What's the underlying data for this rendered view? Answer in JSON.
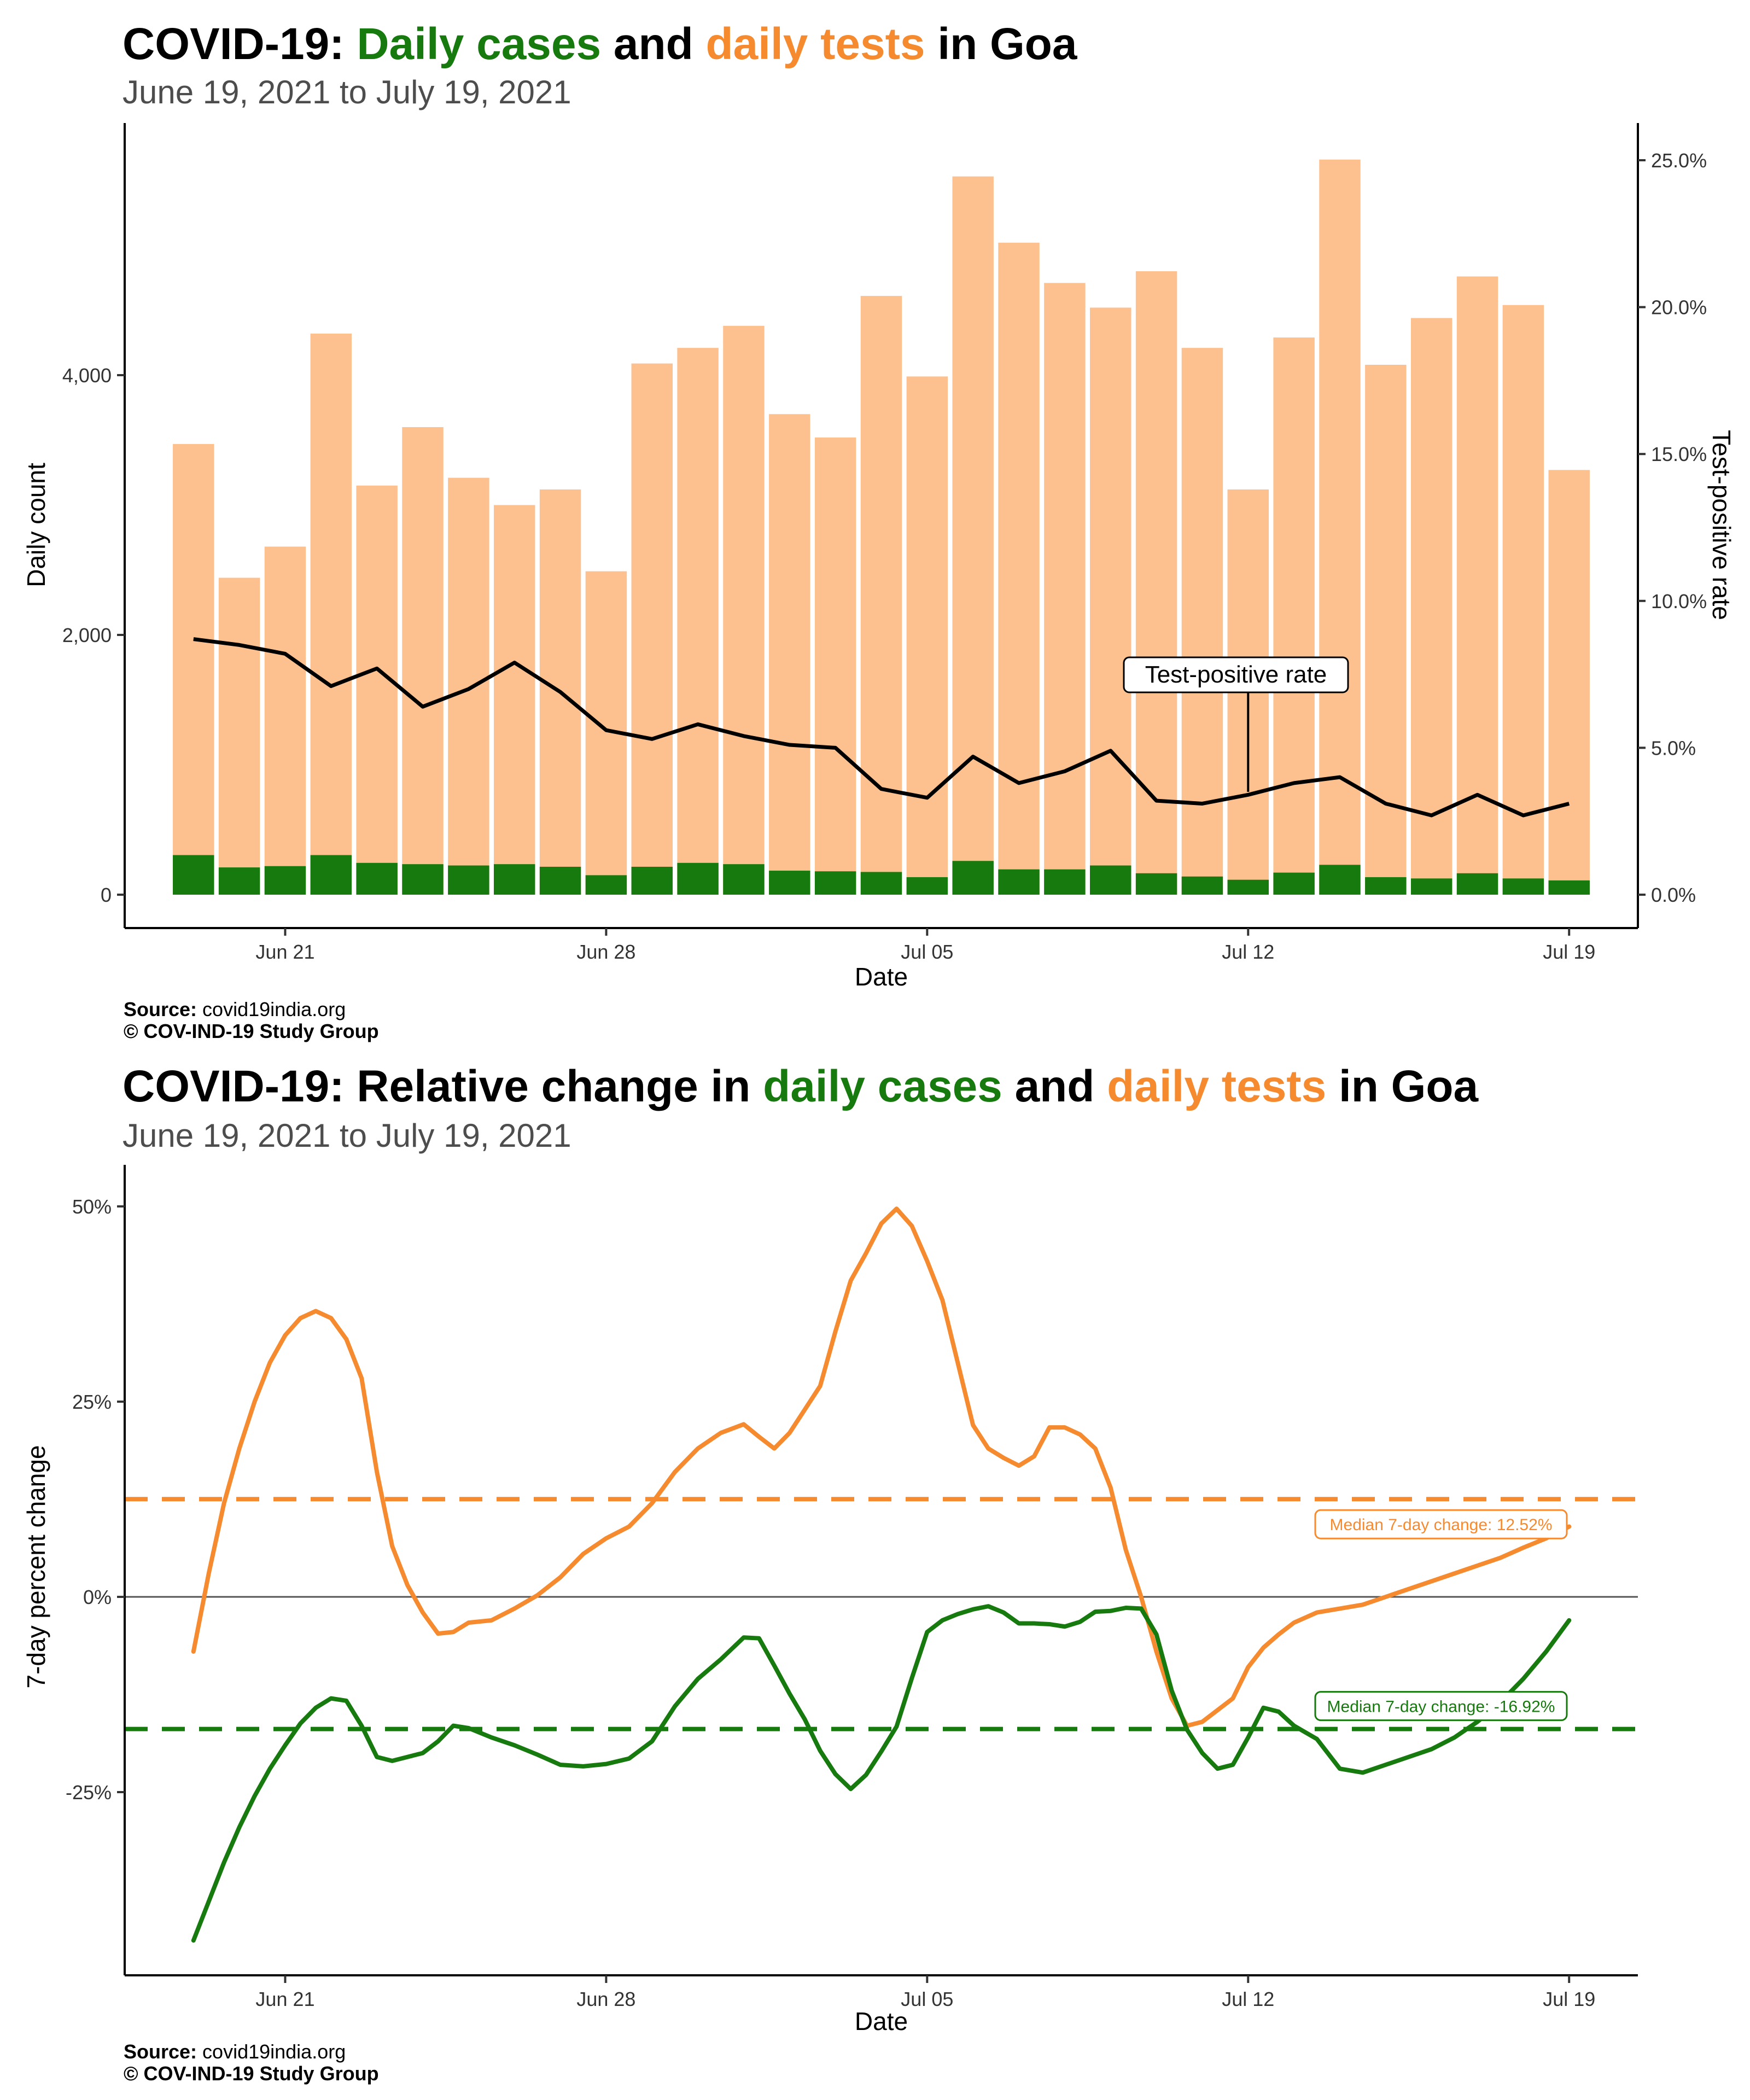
{
  "chart_data": [
    {
      "type": "bar",
      "title": {
        "prefix": "COVID-19: ",
        "cases": "Daily cases",
        "and": " and ",
        "tests": "daily tests",
        "suffix": " in Goa"
      },
      "subtitle": "June 19, 2021 to July 19, 2021",
      "xlabel": "Date",
      "ylabel": "Daily count",
      "ylabel_right": "Test-positive rate",
      "ylim": [
        0,
        5700
      ],
      "ylim_right": [
        0,
        0.26
      ],
      "x_ticks": [
        {
          "date": "2021-06-21",
          "label": "Jun 21"
        },
        {
          "date": "2021-06-28",
          "label": "Jun 28"
        },
        {
          "date": "2021-07-05",
          "label": "Jul 05"
        },
        {
          "date": "2021-07-12",
          "label": "Jul 12"
        },
        {
          "date": "2021-07-19",
          "label": "Jul 19"
        }
      ],
      "y_ticks": [
        {
          "value": 0,
          "label": "0"
        },
        {
          "value": 2000,
          "label": "2,000"
        },
        {
          "value": 4000,
          "label": "4,000"
        }
      ],
      "y_ticks_right": [
        {
          "value": 0.0,
          "label": "0.0%"
        },
        {
          "value": 0.05,
          "label": "5.0%"
        },
        {
          "value": 0.1,
          "label": "10.0%"
        },
        {
          "value": 0.15,
          "label": "15.0%"
        },
        {
          "value": 0.2,
          "label": "20.0%"
        },
        {
          "value": 0.25,
          "label": "25.0%"
        }
      ],
      "dates": [
        "2021-06-19",
        "2021-06-20",
        "2021-06-21",
        "2021-06-22",
        "2021-06-23",
        "2021-06-24",
        "2021-06-25",
        "2021-06-26",
        "2021-06-27",
        "2021-06-28",
        "2021-06-29",
        "2021-06-30",
        "2021-07-01",
        "2021-07-02",
        "2021-07-03",
        "2021-07-04",
        "2021-07-05",
        "2021-07-06",
        "2021-07-07",
        "2021-07-08",
        "2021-07-09",
        "2021-07-10",
        "2021-07-11",
        "2021-07-12",
        "2021-07-13",
        "2021-07-14",
        "2021-07-15",
        "2021-07-16",
        "2021-07-17",
        "2021-07-18",
        "2021-07-19"
      ],
      "series": [
        {
          "name": "Daily tests",
          "color": "#fdc190",
          "values": [
            3470,
            2440,
            2680,
            4320,
            3150,
            3600,
            3210,
            3000,
            3120,
            2490,
            4090,
            4210,
            4380,
            3700,
            3520,
            4610,
            3990,
            5530,
            5020,
            4710,
            4520,
            4800,
            4210,
            3120,
            4290,
            5660,
            4080,
            4440,
            4760,
            4540,
            3270
          ]
        },
        {
          "name": "Daily cases",
          "color": "#177a0e",
          "values": [
            305,
            210,
            220,
            305,
            245,
            235,
            225,
            235,
            215,
            150,
            215,
            245,
            235,
            185,
            180,
            175,
            135,
            260,
            195,
            195,
            225,
            165,
            140,
            115,
            170,
            230,
            135,
            125,
            165,
            125,
            110
          ]
        },
        {
          "name": "Test-positive rate",
          "color": "#000000",
          "values": [
            0.087,
            0.085,
            0.082,
            0.071,
            0.077,
            0.064,
            0.07,
            0.079,
            0.069,
            0.056,
            0.053,
            0.058,
            0.054,
            0.051,
            0.05,
            0.036,
            0.033,
            0.047,
            0.038,
            0.042,
            0.049,
            0.032,
            0.031,
            0.034,
            0.038,
            0.04,
            0.031,
            0.027,
            0.034,
            0.027,
            0.031
          ]
        }
      ],
      "annotation": {
        "label": "Test-positive rate",
        "date": "2021-07-12",
        "value": 0.035
      },
      "caption": {
        "source_label": "Source:",
        "source": " covid19india.org",
        "copyright": "© COV-IND-19 Study Group"
      }
    },
    {
      "type": "line",
      "title": {
        "prefix": "COVID-19: Relative change in ",
        "cases": "daily cases",
        "and": " and ",
        "tests": "daily tests",
        "suffix": " in Goa"
      },
      "subtitle": "June 19, 2021 to July 19, 2021",
      "xlabel": "Date",
      "ylabel": "7-day percent change",
      "ylim": [
        -0.5,
        0.52
      ],
      "x_ticks": [
        {
          "date": "2021-06-21",
          "label": "Jun 21"
        },
        {
          "date": "2021-06-28",
          "label": "Jun 28"
        },
        {
          "date": "2021-07-05",
          "label": "Jul 05"
        },
        {
          "date": "2021-07-12",
          "label": "Jul 12"
        },
        {
          "date": "2021-07-19",
          "label": "Jul 19"
        }
      ],
      "y_ticks": [
        {
          "value": 0.5,
          "label": "50%"
        },
        {
          "value": 0.25,
          "label": "25%"
        },
        {
          "value": 0.0,
          "label": "0%"
        },
        {
          "value": -0.25,
          "label": "-25%"
        }
      ],
      "series": [
        {
          "name": "daily tests",
          "color": "#f58a2f",
          "x": [
            "2021-06-19",
            "2021-06-19T08:00",
            "2021-06-19T16:00",
            "2021-06-20",
            "2021-06-20T08:00",
            "2021-06-20T16:00",
            "2021-06-21",
            "2021-06-21T08:00",
            "2021-06-21T16:00",
            "2021-06-22",
            "2021-06-22T08:00",
            "2021-06-22T16:00",
            "2021-06-23",
            "2021-06-23T08:00",
            "2021-06-23T16:00",
            "2021-06-24",
            "2021-06-24T08:00",
            "2021-06-24T16:00",
            "2021-06-25",
            "2021-06-25T12:00",
            "2021-06-26",
            "2021-06-26T12:00",
            "2021-06-27",
            "2021-06-27T12:00",
            "2021-06-28",
            "2021-06-28T12:00",
            "2021-06-29",
            "2021-06-29T12:00",
            "2021-06-30",
            "2021-06-30T12:00",
            "2021-07-01",
            "2021-07-01T08:00",
            "2021-07-01T16:00",
            "2021-07-02",
            "2021-07-02T08:00",
            "2021-07-02T16:00",
            "2021-07-03",
            "2021-07-03T08:00",
            "2021-07-03T16:00",
            "2021-07-04",
            "2021-07-04T08:00",
            "2021-07-04T16:00",
            "2021-07-05",
            "2021-07-05T08:00",
            "2021-07-05T16:00",
            "2021-07-06",
            "2021-07-06T08:00",
            "2021-07-06T16:00",
            "2021-07-07",
            "2021-07-07T08:00",
            "2021-07-07T16:00",
            "2021-07-08",
            "2021-07-08T08:00",
            "2021-07-08T16:00",
            "2021-07-09",
            "2021-07-09T08:00",
            "2021-07-09T16:00",
            "2021-07-10",
            "2021-07-10T08:00",
            "2021-07-10T16:00",
            "2021-07-11",
            "2021-07-11T08:00",
            "2021-07-11T16:00",
            "2021-07-12",
            "2021-07-12T08:00",
            "2021-07-12T16:00",
            "2021-07-13",
            "2021-07-13T12:00",
            "2021-07-14",
            "2021-07-14T12:00",
            "2021-07-15",
            "2021-07-15T12:00",
            "2021-07-16",
            "2021-07-16T12:00",
            "2021-07-17",
            "2021-07-17T12:00",
            "2021-07-18",
            "2021-07-18T12:00",
            "2021-07-19"
          ],
          "values": [
            -0.07,
            0.03,
            0.12,
            0.19,
            0.25,
            0.3,
            0.335,
            0.357,
            0.366,
            0.357,
            0.33,
            0.28,
            0.16,
            0.065,
            0.015,
            -0.02,
            -0.047,
            -0.045,
            -0.033,
            -0.03,
            -0.015,
            0.002,
            0.025,
            0.055,
            0.075,
            0.09,
            0.12,
            0.16,
            0.19,
            0.21,
            0.221,
            0.205,
            0.19,
            0.21,
            0.24,
            0.27,
            0.34,
            0.405,
            0.44,
            0.478,
            0.497,
            0.475,
            0.43,
            0.38,
            0.3,
            0.22,
            0.19,
            0.178,
            0.168,
            0.18,
            0.217,
            0.217,
            0.208,
            0.19,
            0.14,
            0.06,
            0.0,
            -0.07,
            -0.13,
            -0.165,
            -0.16,
            -0.145,
            -0.13,
            -0.09,
            -0.065,
            -0.048,
            -0.033,
            -0.02,
            -0.015,
            -0.01,
            0.0,
            0.01,
            0.02,
            0.03,
            0.04,
            0.05,
            0.063,
            0.075,
            0.09
          ]
        },
        {
          "name": "daily cases",
          "color": "#177a0e",
          "x": [
            "2021-06-19",
            "2021-06-19T08:00",
            "2021-06-19T16:00",
            "2021-06-20",
            "2021-06-20T08:00",
            "2021-06-20T16:00",
            "2021-06-21",
            "2021-06-21T08:00",
            "2021-06-21T16:00",
            "2021-06-22",
            "2021-06-22T08:00",
            "2021-06-22T16:00",
            "2021-06-23",
            "2021-06-23T08:00",
            "2021-06-23T16:00",
            "2021-06-24",
            "2021-06-24T08:00",
            "2021-06-24T16:00",
            "2021-06-25",
            "2021-06-25T12:00",
            "2021-06-26",
            "2021-06-26T12:00",
            "2021-06-27",
            "2021-06-27T12:00",
            "2021-06-28",
            "2021-06-28T12:00",
            "2021-06-29",
            "2021-06-29T12:00",
            "2021-06-30",
            "2021-06-30T12:00",
            "2021-07-01",
            "2021-07-01T08:00",
            "2021-07-01T16:00",
            "2021-07-02",
            "2021-07-02T08:00",
            "2021-07-02T16:00",
            "2021-07-03",
            "2021-07-03T08:00",
            "2021-07-03T16:00",
            "2021-07-04",
            "2021-07-04T08:00",
            "2021-07-04T16:00",
            "2021-07-05",
            "2021-07-05T08:00",
            "2021-07-05T16:00",
            "2021-07-06",
            "2021-07-06T08:00",
            "2021-07-06T16:00",
            "2021-07-07",
            "2021-07-07T08:00",
            "2021-07-07T16:00",
            "2021-07-08",
            "2021-07-08T08:00",
            "2021-07-08T16:00",
            "2021-07-09",
            "2021-07-09T08:00",
            "2021-07-09T16:00",
            "2021-07-10",
            "2021-07-10T08:00",
            "2021-07-10T16:00",
            "2021-07-11",
            "2021-07-11T08:00",
            "2021-07-11T16:00",
            "2021-07-12",
            "2021-07-12T08:00",
            "2021-07-12T16:00",
            "2021-07-13",
            "2021-07-13T12:00",
            "2021-07-14",
            "2021-07-14T12:00",
            "2021-07-15",
            "2021-07-15T12:00",
            "2021-07-16",
            "2021-07-16T12:00",
            "2021-07-17",
            "2021-07-17T12:00",
            "2021-07-18",
            "2021-07-18T12:00",
            "2021-07-19"
          ],
          "values": [
            -0.44,
            -0.39,
            -0.34,
            -0.295,
            -0.255,
            -0.22,
            -0.19,
            -0.162,
            -0.142,
            -0.13,
            -0.133,
            -0.165,
            -0.205,
            -0.21,
            -0.205,
            -0.2,
            -0.185,
            -0.165,
            -0.168,
            -0.18,
            -0.19,
            -0.202,
            -0.215,
            -0.217,
            -0.214,
            -0.207,
            -0.185,
            -0.14,
            -0.105,
            -0.08,
            -0.052,
            -0.053,
            -0.088,
            -0.124,
            -0.157,
            -0.197,
            -0.227,
            -0.246,
            -0.228,
            -0.198,
            -0.166,
            -0.104,
            -0.045,
            -0.03,
            -0.022,
            -0.016,
            -0.012,
            -0.02,
            -0.034,
            -0.034,
            -0.035,
            -0.038,
            -0.032,
            -0.019,
            -0.018,
            -0.014,
            -0.015,
            -0.048,
            -0.12,
            -0.17,
            -0.2,
            -0.22,
            -0.215,
            -0.18,
            -0.142,
            -0.147,
            -0.165,
            -0.182,
            -0.22,
            -0.225,
            -0.215,
            -0.205,
            -0.195,
            -0.18,
            -0.16,
            -0.135,
            -0.105,
            -0.07,
            -0.03
          ]
        }
      ],
      "reference_lines": [
        {
          "series": "daily tests",
          "value": 0.1252,
          "label": "Median 7-day change: 12.52%",
          "color": "#f58a2f"
        },
        {
          "series": "daily cases",
          "value": -0.1692,
          "label": "Median 7-day change: -16.92%",
          "color": "#177a0e"
        }
      ],
      "caption": {
        "source_label": "Source:",
        "source": " covid19india.org",
        "copyright": "© COV-IND-19 Study Group"
      }
    }
  ]
}
